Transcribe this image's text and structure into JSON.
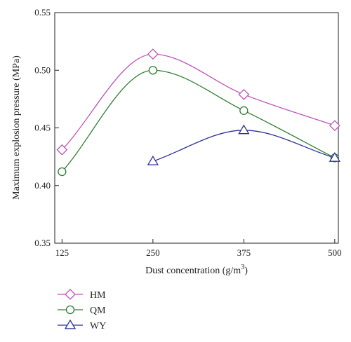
{
  "chart_data": {
    "type": "line",
    "x": [
      125,
      250,
      375,
      500
    ],
    "xlabel": "Dust concentration (g/m",
    "xlabel_sup": "3",
    "xlabel_tail": ")",
    "ylabel": "Maximum explosion pressure (MPa)",
    "xlim": [
      115,
      505
    ],
    "ylim": [
      0.35,
      0.55
    ],
    "xticks": [
      "125",
      "250",
      "375",
      "500"
    ],
    "yticks": [
      "0.35",
      "0.40",
      "0.45",
      "0.50",
      "0.55"
    ],
    "grid": false,
    "legend_position": "bottom-left, below plot",
    "series": [
      {
        "name": "HM",
        "marker": "diamond",
        "color": "#c052b8",
        "points": [
          [
            125,
            0.431
          ],
          [
            250,
            0.514
          ],
          [
            375,
            0.479
          ],
          [
            500,
            0.452
          ]
        ]
      },
      {
        "name": "QM",
        "marker": "circle",
        "color": "#2e7d32",
        "points": [
          [
            125,
            0.412
          ],
          [
            250,
            0.5
          ],
          [
            375,
            0.465
          ],
          [
            500,
            0.424
          ]
        ]
      },
      {
        "name": "WY",
        "marker": "triangle",
        "color": "#2e2e9a",
        "points": [
          [
            250,
            0.421
          ],
          [
            375,
            0.448
          ],
          [
            500,
            0.424
          ]
        ]
      }
    ]
  }
}
